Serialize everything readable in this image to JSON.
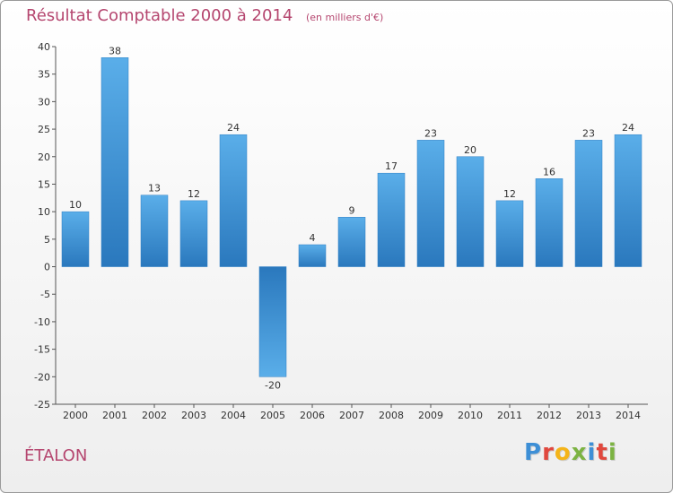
{
  "chart_data": {
    "type": "bar",
    "title": "Résultat Comptable 2000 à 2014",
    "subtitle": "(en milliers d'€)",
    "xlabel": "",
    "ylabel": "",
    "categories": [
      "2000",
      "2001",
      "2002",
      "2003",
      "2004",
      "2005",
      "2006",
      "2007",
      "2008",
      "2009",
      "2010",
      "2011",
      "2012",
      "2013",
      "2014"
    ],
    "values": [
      10,
      38,
      13,
      12,
      24,
      -20,
      4,
      9,
      17,
      23,
      20,
      12,
      16,
      23,
      24
    ],
    "ylim": [
      -25,
      40
    ],
    "yticks": [
      40,
      35,
      30,
      25,
      20,
      15,
      10,
      5,
      0,
      -5,
      -10,
      -15,
      -20,
      -25
    ],
    "grid": false,
    "legend": "none",
    "bar_color": "#3f8fd2"
  },
  "footer": {
    "commune": "ÉTALON",
    "logo_letters": [
      "P",
      "r",
      "o",
      "x",
      "i",
      "t",
      "i"
    ],
    "logo_colors": [
      "#3d8fd6",
      "#e0483e",
      "#f4b41a",
      "#7cb342",
      "#3d8fd6",
      "#e0483e",
      "#7cb342"
    ]
  }
}
